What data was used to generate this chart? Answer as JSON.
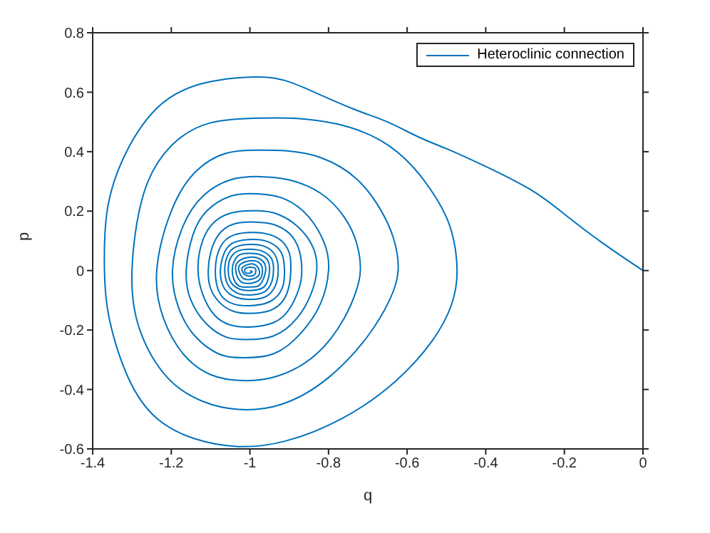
{
  "chart_data": {
    "type": "line",
    "xlabel": "q",
    "ylabel": "p",
    "xlim": [
      -1.4,
      0
    ],
    "ylim": [
      -0.6,
      0.8
    ],
    "xticks": [
      -1.4,
      -1.2,
      -1,
      -0.8,
      -0.6,
      -0.4,
      -0.2,
      0
    ],
    "yticks": [
      -0.6,
      -0.4,
      -0.2,
      0,
      0.2,
      0.4,
      0.6,
      0.8
    ],
    "legend": "top right",
    "series": [
      {
        "name": "Heteroclinic connection",
        "color": "#0072bd",
        "x": [
          0,
          -0.1,
          -0.2,
          -0.283,
          -0.4,
          -0.5,
          -0.572,
          -0.65,
          -0.741,
          -0.862,
          -0.965,
          -1.116,
          -1.237,
          -1.322,
          -1.364,
          -1.37,
          -1.358,
          -1.31,
          -1.237,
          -1.14,
          -1.031,
          -0.911,
          -0.765,
          -0.632,
          -0.536,
          -0.487,
          -0.473,
          -0.487,
          -0.524,
          -0.584,
          -0.669,
          -0.778,
          -0.88,
          -0.971,
          -1.1,
          -1.2,
          -1.27,
          -1.3,
          -1.28,
          -1.21,
          -1.12,
          -1.03,
          -0.92,
          -0.8,
          -0.7,
          -0.645,
          -0.623,
          -0.635,
          -0.67,
          -0.73,
          -0.82,
          -0.91,
          -0.975,
          -1.06,
          -1.14,
          -1.2,
          -1.237,
          -1.22,
          -1.17,
          -1.1,
          -1.02,
          -0.93,
          -0.83,
          -0.76,
          -0.73,
          -0.719,
          -0.728,
          -0.76,
          -0.82,
          -0.9,
          -0.975,
          -1.05,
          -1.12,
          -1.17,
          -1.197,
          -1.18,
          -1.14,
          -1.08,
          -1.02,
          -0.94,
          -0.87,
          -0.82,
          -0.8,
          -0.81,
          -0.85,
          -0.91,
          -0.98,
          -1.05,
          -1.11,
          -1.145,
          -1.162,
          -1.15,
          -1.11,
          -1.06,
          -1.01,
          -0.94,
          -0.88,
          -0.845,
          -0.83,
          -0.84,
          -0.88,
          -0.93,
          -0.98,
          -1.05,
          -1.1,
          -1.125,
          -1.132,
          -1.12,
          -1.09,
          -1.05,
          -1.0,
          -0.94,
          -0.9,
          -0.875,
          -0.868,
          -0.875,
          -0.9,
          -0.94,
          -0.985,
          -1.04,
          -1.08,
          -1.1,
          -1.106,
          -1.1,
          -1.075,
          -1.04,
          -1.0,
          -0.95,
          -0.915,
          -0.9,
          -0.896,
          -0.9,
          -0.93,
          -0.985,
          -1.04,
          -1.075,
          -1.088,
          -1.075,
          -1.04,
          -1.0,
          -0.95,
          -0.918,
          -0.912,
          -0.92,
          -0.95,
          -0.99,
          -1.04,
          -1.065,
          -1.075,
          -1.065,
          -1.035,
          -1.0,
          -0.96,
          -0.935,
          -0.928,
          -0.935,
          -0.96,
          -0.995,
          -1.035,
          -1.057,
          -1.064,
          -1.055,
          -1.03,
          -1.0,
          -0.965,
          -0.945,
          -0.94,
          -0.945,
          -0.97,
          -1.0,
          -1.03,
          -1.05,
          -1.055,
          -1.048,
          -1.025,
          -1.0,
          -0.97,
          -0.955,
          -0.95,
          -0.955,
          -0.975,
          -1.0,
          -1.03,
          -1.045,
          -1.03,
          -1.0,
          -0.975,
          -0.96,
          -0.97,
          -1.0,
          -1.03,
          -1.036,
          -1.025,
          -1.0,
          -0.975,
          -0.968,
          -0.975,
          -1.0,
          -1.025,
          -1.028,
          -1.018,
          -1.0,
          -0.98,
          -0.976,
          -0.985,
          -1.0,
          -1.018,
          -1.02,
          -1.01,
          -0.99,
          -0.985,
          -0.99,
          -1.01,
          -1.01,
          -0.995,
          -1.0
        ],
        "values": [
          0,
          0.09,
          0.19,
          0.27,
          0.35,
          0.41,
          0.45,
          0.5,
          0.546,
          0.615,
          0.651,
          0.631,
          0.546,
          0.378,
          0.193,
          0,
          -0.16,
          -0.359,
          -0.497,
          -0.566,
          -0.592,
          -0.574,
          -0.497,
          -0.375,
          -0.236,
          -0.114,
          0,
          0.132,
          0.239,
          0.347,
          0.439,
          0.493,
          0.512,
          0.513,
          0.497,
          0.42,
          0.26,
          0,
          -0.2,
          -0.36,
          -0.44,
          -0.467,
          -0.45,
          -0.36,
          -0.22,
          -0.1,
          0,
          0.11,
          0.21,
          0.31,
          0.38,
          0.403,
          0.405,
          0.395,
          0.33,
          0.2,
          0,
          -0.16,
          -0.28,
          -0.35,
          -0.37,
          -0.355,
          -0.28,
          -0.16,
          -0.07,
          0,
          0.09,
          0.18,
          0.26,
          0.305,
          0.316,
          0.305,
          0.25,
          0.15,
          0,
          -0.13,
          -0.22,
          -0.28,
          -0.293,
          -0.28,
          -0.21,
          -0.11,
          0,
          0.09,
          0.18,
          0.24,
          0.258,
          0.25,
          0.2,
          0.12,
          0,
          -0.1,
          -0.18,
          -0.224,
          -0.232,
          -0.22,
          -0.16,
          -0.08,
          0,
          0.08,
          0.15,
          0.19,
          0.201,
          0.193,
          0.15,
          0.08,
          0,
          -0.08,
          -0.15,
          -0.183,
          -0.19,
          -0.175,
          -0.13,
          -0.06,
          0,
          0.07,
          0.125,
          0.155,
          0.163,
          0.157,
          0.12,
          0.06,
          0,
          -0.06,
          -0.11,
          -0.138,
          -0.144,
          -0.135,
          -0.1,
          -0.05,
          0,
          0.06,
          0.11,
          0.128,
          0.12,
          0.08,
          0,
          -0.08,
          -0.113,
          -0.118,
          -0.105,
          -0.06,
          0,
          0.06,
          0.095,
          0.105,
          0.095,
          0.06,
          0,
          -0.06,
          -0.09,
          -0.097,
          -0.088,
          -0.05,
          0,
          0.05,
          0.08,
          0.088,
          0.08,
          0.05,
          0,
          -0.05,
          -0.077,
          -0.082,
          -0.073,
          -0.04,
          0,
          0.04,
          0.066,
          0.072,
          0.066,
          0.04,
          0,
          -0.04,
          -0.063,
          -0.067,
          -0.06,
          -0.035,
          0,
          0.035,
          0.054,
          0.058,
          0.05,
          0,
          -0.05,
          -0.055,
          -0.048,
          0,
          0.035,
          0.045,
          0.03,
          0,
          -0.035,
          -0.043,
          -0.03,
          0,
          0.025,
          0.033,
          0.02,
          0,
          -0.025,
          -0.03,
          -0.02,
          0,
          0.018,
          0.022,
          0.012,
          0,
          -0.016,
          -0.016,
          0,
          0.01,
          0.008,
          -0.008,
          -0.006,
          0
        ]
      }
    ]
  }
}
